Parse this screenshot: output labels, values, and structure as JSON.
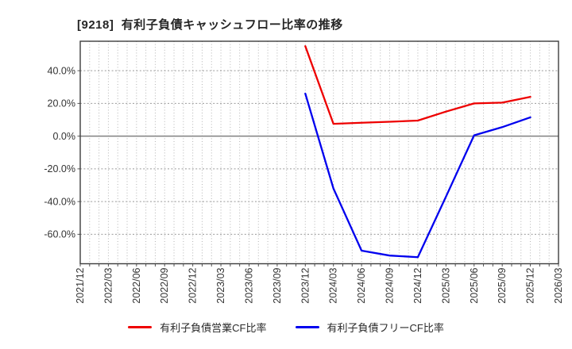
{
  "page": {
    "background": "#ffffff"
  },
  "chart_data": {
    "type": "line",
    "title": "[9218]  有利子負債キャッシュフロー比率の推移",
    "x_tick_labels": [
      "2021/12",
      "2022/03",
      "2022/06",
      "2022/09",
      "2022/12",
      "2023/03",
      "2023/06",
      "2023/09",
      "2023/12",
      "2024/03",
      "2024/06",
      "2024/09",
      "2024/12",
      "2025/03",
      "2025/06",
      "2025/09",
      "2025/12",
      "2026/03"
    ],
    "x_range": [
      "2021/12",
      "2026/03"
    ],
    "x_minor_gridlines": "monthly",
    "xlabel": "",
    "ylabel": "",
    "y_ticks": [
      40,
      20,
      0,
      -20,
      -40,
      -60
    ],
    "y_tick_suffix": "%",
    "ylim": [
      -78,
      58
    ],
    "grid": "on",
    "legend_position": "bottom-center",
    "series": [
      {
        "name": "有利子負債営業CF比率",
        "color": "#ee0000",
        "x": [
          "2023/12",
          "2024/03",
          "2024/06",
          "2024/09",
          "2024/12",
          "2025/03",
          "2025/06",
          "2025/09",
          "2025/12"
        ],
        "values": [
          55.0,
          7.5,
          8.2,
          8.8,
          9.5,
          15.0,
          20.0,
          20.5,
          24.0
        ]
      },
      {
        "name": "有利子負債フリーCF比率",
        "color": "#0000ee",
        "x": [
          "2023/12",
          "2024/03",
          "2024/06",
          "2024/09",
          "2024/12",
          "2025/03",
          "2025/06",
          "2025/09",
          "2025/12"
        ],
        "values": [
          26.0,
          -32.0,
          -70.0,
          -73.0,
          -74.0,
          -37.0,
          0.5,
          5.5,
          11.5
        ]
      }
    ],
    "colors": {
      "grid_minor": "#b3b3b3",
      "grid_major": "#999999",
      "zero_line": "#808080",
      "border": "#3d3d3d",
      "tick_text": "#333333",
      "title_text": "#262626"
    }
  }
}
